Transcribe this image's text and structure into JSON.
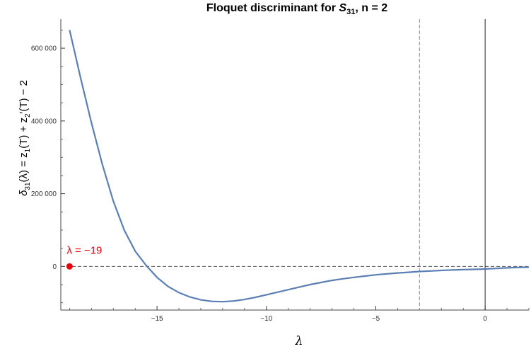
{
  "chart_data": {
    "type": "line",
    "title": {
      "main": "Floquet discriminant for ",
      "symbol": "S",
      "subscript": "31",
      "rest": ", n = 2"
    },
    "xlabel": "λ",
    "ylabel": {
      "p1": "δ",
      "s1": "31",
      "p2": "(λ) = z",
      "s2": "1",
      "p3": "(T) + z",
      "s3": "2",
      "p4": "′(T) − 2"
    },
    "xlim": [
      -19.4,
      2.0
    ],
    "ylim": [
      -120000,
      680000
    ],
    "x_ticks": [
      {
        "value": -15,
        "label": "−15"
      },
      {
        "value": -10,
        "label": "−10"
      },
      {
        "value": -5,
        "label": "−5"
      },
      {
        "value": 0,
        "label": "0"
      }
    ],
    "y_ticks": [
      {
        "value": 0,
        "label": "0"
      },
      {
        "value": 200000,
        "label": "200 000"
      },
      {
        "value": 400000,
        "label": "400 000"
      },
      {
        "value": 600000,
        "label": "600 000"
      }
    ],
    "x_minor_step": 1,
    "y_minor_step": 50000,
    "grid": false,
    "colors": {
      "curve": "#5b7fb5",
      "point": "#e8000b",
      "annotation": "#e8000b",
      "reference_line": "#888888"
    },
    "series": [
      {
        "x": [
          -19,
          -18.5,
          -18,
          -17.5,
          -17,
          -16.5,
          -16,
          -15.5,
          -15,
          -14.5,
          -14,
          -13.5,
          -13,
          -12.5,
          -12,
          -11.5,
          -11,
          -10.5,
          -10,
          -9.5,
          -9,
          -8.5,
          -8,
          -7.5,
          -7,
          -6.5,
          -6,
          -5.5,
          -5,
          -4.5,
          -4,
          -3.5,
          -3,
          -2.5,
          -2,
          -1.5,
          -1,
          -0.5,
          0,
          0.5,
          1,
          1.5,
          2
        ],
        "y": [
          650000,
          520000,
          395000,
          280000,
          180000,
          100000,
          42000,
          3000,
          -30000,
          -55000,
          -72000,
          -84000,
          -92000,
          -96000,
          -97000,
          -95000,
          -91000,
          -85000,
          -78000,
          -71000,
          -64000,
          -57000,
          -50000,
          -44000,
          -38500,
          -34000,
          -30000,
          -26500,
          -23000,
          -20500,
          -18000,
          -16000,
          -14000,
          -12500,
          -11000,
          -9800,
          -8800,
          -8000,
          -7200,
          -5500,
          -4000,
          -2800,
          -2000
        ]
      }
    ],
    "marked_point": {
      "x": -19,
      "y": 0,
      "label": "λ = −19"
    },
    "reference_lines": {
      "vertical_dashed": [
        -3
      ],
      "vertical_solid": [
        0
      ],
      "horizontal_dashed": [
        0
      ]
    }
  }
}
